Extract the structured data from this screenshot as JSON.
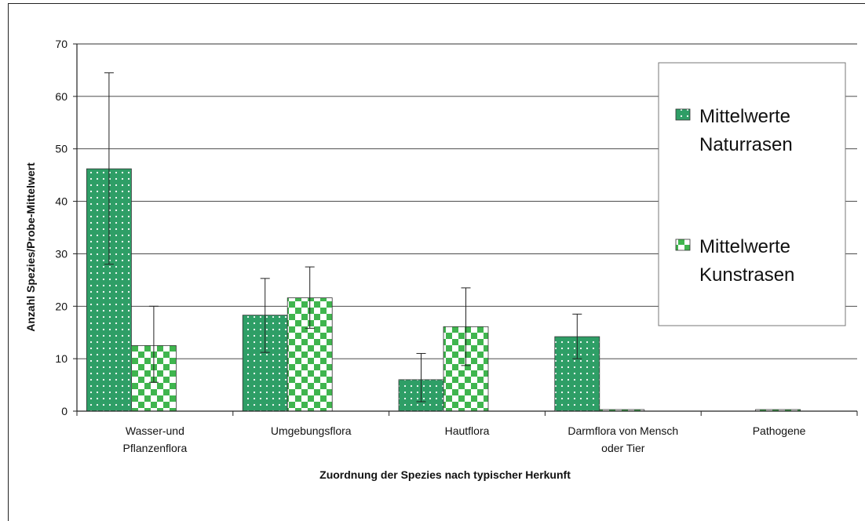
{
  "chart_data": {
    "type": "bar",
    "title": "",
    "xlabel": "Zuordnung der Spezies nach typischer Herkunft",
    "ylabel": "Anzahl Spezies/Probe-Mittelwert",
    "ylim": [
      0,
      70
    ],
    "yticks": [
      "0",
      "10",
      "20",
      "30",
      "40",
      "50",
      "60",
      "70"
    ],
    "grid": true,
    "legend_position": "right",
    "categories": [
      [
        "Wasser-und",
        "Pflanzenflora"
      ],
      [
        "Umgebungsflora"
      ],
      [
        "Hautflora"
      ],
      [
        "Darmflora von Mensch",
        "oder Tier"
      ],
      [
        "Pathogene"
      ]
    ],
    "series": [
      {
        "name": [
          "Mittelwerte",
          "Naturrasen"
        ],
        "pattern": "dots",
        "color": "#2e9e66",
        "values": [
          46.2,
          18.3,
          6.0,
          14.2,
          0
        ],
        "err_low": [
          28.0,
          11.2,
          1.8,
          10.0,
          null
        ],
        "err_high": [
          64.5,
          25.3,
          11.0,
          18.5,
          null
        ]
      },
      {
        "name": [
          "Mittelwerte",
          "Kunstrasen"
        ],
        "pattern": "checker",
        "color": "#3fb54e",
        "values": [
          12.5,
          21.6,
          16.1,
          0.3,
          0.3
        ],
        "err_low": [
          5.5,
          15.8,
          8.7,
          null,
          null
        ],
        "err_high": [
          20.0,
          27.5,
          23.5,
          null,
          null
        ]
      }
    ]
  }
}
